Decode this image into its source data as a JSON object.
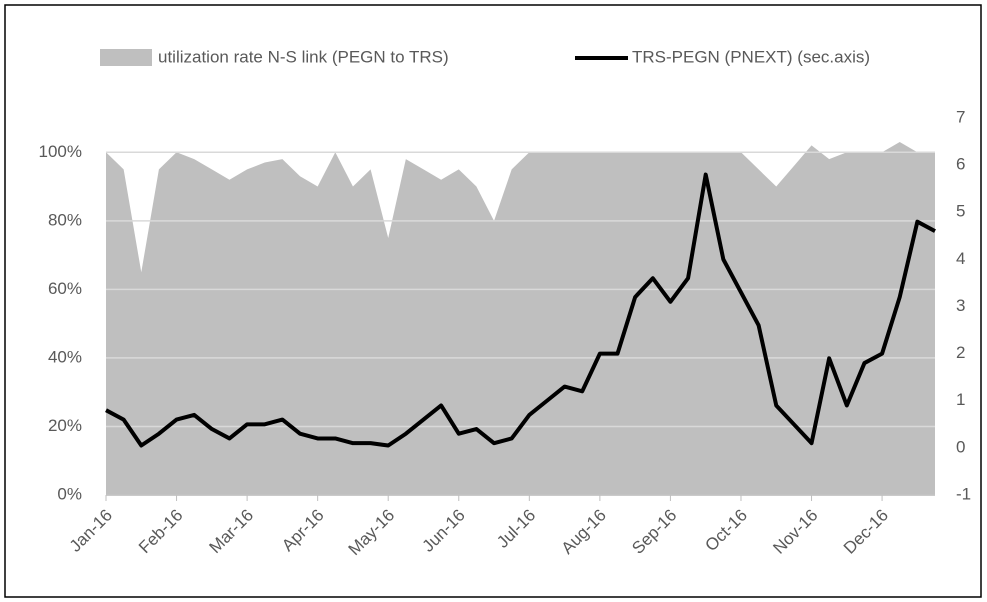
{
  "chart_data": {
    "type": "area_line",
    "categories": [
      "Jan-16",
      null,
      null,
      null,
      "Feb-16",
      null,
      null,
      null,
      "Mar-16",
      null,
      null,
      null,
      "Apr-16",
      null,
      null,
      null,
      "May-16",
      null,
      null,
      null,
      "Jun-16",
      null,
      null,
      null,
      "Jul-16",
      null,
      null,
      null,
      "Aug-16",
      null,
      null,
      null,
      "Sep-16",
      null,
      null,
      null,
      "Oct-16",
      null,
      null,
      null,
      "Nov-16",
      null,
      null,
      null,
      "Dec-16",
      null,
      null,
      null
    ],
    "series": [
      {
        "name": "utilization rate N-S link (PEGN to TRS)",
        "color": "#bfbfbf",
        "kind": "area",
        "values": [
          100,
          95,
          65,
          95,
          100,
          98,
          95,
          92,
          95,
          97,
          98,
          93,
          90,
          100,
          90,
          95,
          75,
          98,
          95,
          92,
          95,
          90,
          80,
          95,
          100,
          100,
          100,
          100,
          100,
          100,
          100,
          100,
          100,
          100,
          100,
          100,
          100,
          95,
          90,
          96,
          102,
          98,
          100,
          100,
          100,
          103,
          100,
          100
        ]
      },
      {
        "name": "TRS-PEGN (PNEXT) (sec.axis)",
        "color": "#000000",
        "kind": "line",
        "axis": "y2",
        "values": [
          0.8,
          0.6,
          0.05,
          0.3,
          0.6,
          0.7,
          0.4,
          0.2,
          0.5,
          0.5,
          0.6,
          0.3,
          0.2,
          0.2,
          0.1,
          0.1,
          0.05,
          0.3,
          0.6,
          0.9,
          0.3,
          0.4,
          0.1,
          0.2,
          0.7,
          1.0,
          1.3,
          1.2,
          2.0,
          2.0,
          3.2,
          3.6,
          3.1,
          3.6,
          5.8,
          4.0,
          3.3,
          2.6,
          0.9,
          0.5,
          0.1,
          1.9,
          0.9,
          1.8,
          2.0,
          3.2,
          4.8,
          4.6
        ]
      }
    ],
    "ylim": [
      0,
      110
    ],
    "yticks": [
      {
        "value": 0,
        "label": "0%"
      },
      {
        "value": 20,
        "label": "20%"
      },
      {
        "value": 40,
        "label": "40%"
      },
      {
        "value": 60,
        "label": "60%"
      },
      {
        "value": 80,
        "label": "80%"
      },
      {
        "value": 100,
        "label": "100%"
      }
    ],
    "y2lim": [
      -1,
      7
    ],
    "y2ticks": [
      -1,
      0,
      1,
      2,
      3,
      4,
      5,
      6,
      7
    ],
    "grid": true,
    "legend": "top"
  }
}
